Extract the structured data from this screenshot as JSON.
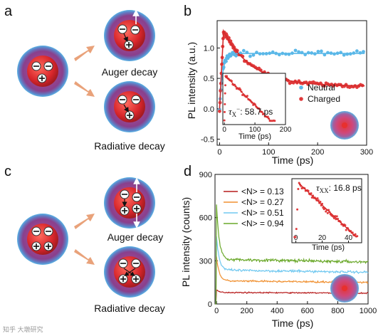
{
  "colors": {
    "neutral": "#5bb8e8",
    "charged": "#e0393b",
    "fit": "#d42b2b",
    "n013": "#b71c1c",
    "n027": "#f09030",
    "n051": "#70c8f0",
    "n094": "#6aa82a",
    "arrow": "#e9a27a"
  },
  "panels": {
    "a": {
      "label": "a",
      "cap1": "Auger decay",
      "cap2": "Radiative decay"
    },
    "b": {
      "label": "b"
    },
    "c": {
      "label": "c",
      "cap1": "Auger decay",
      "cap2": "Radiative decay"
    },
    "d": {
      "label": "d"
    }
  },
  "watermark": "知乎 大墩研究",
  "chart_data": [
    {
      "panel": "b",
      "type": "scatter",
      "xlabel": "Time (ps)",
      "ylabel": "PL intensity (a.u.)",
      "xlim": [
        -5,
        300
      ],
      "ylim": [
        -0.6,
        1.45
      ],
      "xticks": [
        0,
        100,
        200,
        300
      ],
      "yticks": [
        -0.5,
        0.0,
        0.5,
        1.0
      ],
      "ytick_labels": [
        "-0.5",
        "0.0",
        "0.5",
        "1.0"
      ],
      "legend_position": "right",
      "series": [
        {
          "name": "Neutral",
          "key": "neutral",
          "baseline": 0.91,
          "rise_time": 6
        },
        {
          "name": "Charged",
          "key": "charged",
          "peak": 1.28,
          "peak_time": 8,
          "tau_ps": 58.7,
          "offset": 0.37
        }
      ],
      "inset": {
        "xlabel": "Time (ps)",
        "xlim": [
          -5,
          200
        ],
        "xticks": [
          0,
          100,
          200
        ],
        "annotation_symbol": "τ",
        "annotation_sub": "X",
        "annotation_sup": "−",
        "annotation_value": ": 58.7 ps",
        "tau_ps": 58.7
      }
    },
    {
      "panel": "d",
      "type": "line",
      "xlabel": "Time (ps)",
      "ylabel": "PL intensity (counts)",
      "xlim": [
        -10,
        1000
      ],
      "ylim": [
        0,
        900
      ],
      "xticks": [
        0,
        200,
        400,
        600,
        800,
        1000
      ],
      "yticks": [
        0,
        300,
        600,
        900
      ],
      "legend_position": "top-left",
      "series": [
        {
          "name": "<N> = 0.13",
          "key": "n013",
          "peak": 95,
          "plateau": 80
        },
        {
          "name": "<N> = 0.27",
          "key": "n027",
          "peak": 330,
          "plateau": 160
        },
        {
          "name": "<N> = 0.51",
          "key": "n051",
          "peak": 470,
          "plateau": 235
        },
        {
          "name": "<N> = 0.94",
          "key": "n094",
          "peak": 690,
          "plateau": 310
        }
      ],
      "inset": {
        "xlabel": "Time (ps)",
        "xlim": [
          -3,
          50
        ],
        "xticks": [
          0,
          20,
          40
        ],
        "annotation_symbol": "τ",
        "annotation_sub": "XX",
        "annotation_value": ": 16.8 ps",
        "tau_ps": 16.8
      }
    }
  ]
}
